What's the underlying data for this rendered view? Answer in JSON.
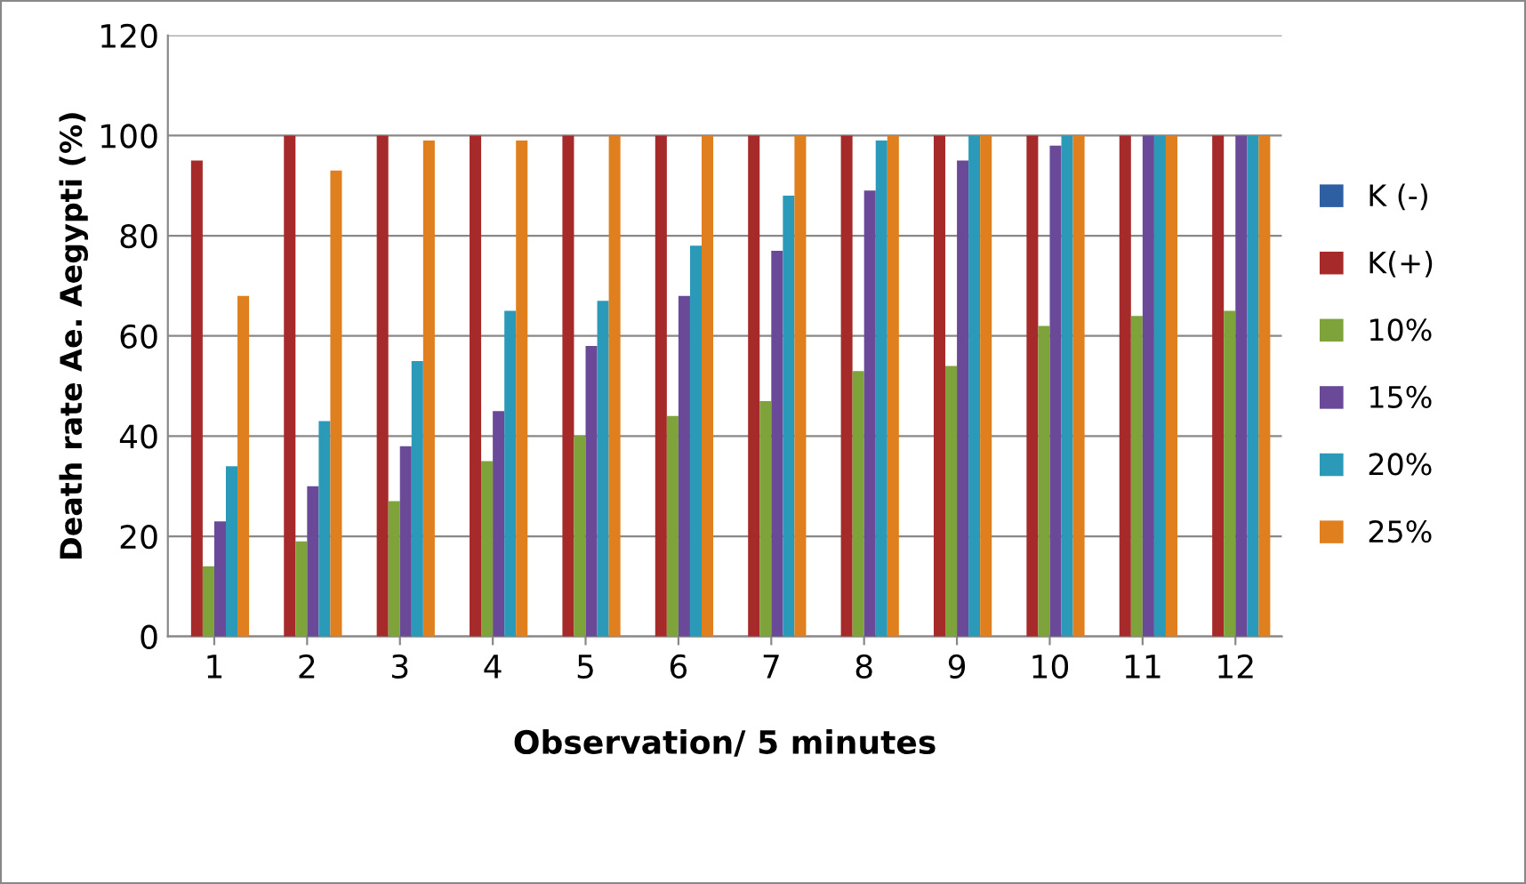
{
  "chart_data": {
    "type": "bar",
    "xlabel": "Observation/ 5 minutes",
    "ylabel": "Death rate Ae. Aegypti (%)",
    "categories": [
      "1",
      "2",
      "3",
      "4",
      "5",
      "6",
      "7",
      "8",
      "9",
      "10",
      "11",
      "12"
    ],
    "series": [
      {
        "name": "K (-)",
        "color": "#2e5fa3",
        "values": [
          0,
          0,
          0,
          0,
          0,
          0,
          0,
          0,
          0,
          0,
          0,
          0
        ]
      },
      {
        "name": "K(+)",
        "color": "#a72a2a",
        "values": [
          95,
          100,
          100,
          100,
          100,
          100,
          100,
          100,
          100,
          100,
          100,
          100
        ]
      },
      {
        "name": "10%",
        "color": "#7ea33a",
        "values": [
          14,
          19,
          27,
          35,
          40,
          44,
          47,
          53,
          54,
          62,
          64,
          65
        ]
      },
      {
        "name": "15%",
        "color": "#6a4a98",
        "values": [
          23,
          30,
          38,
          45,
          58,
          68,
          77,
          89,
          95,
          98,
          100,
          100
        ]
      },
      {
        "name": "20%",
        "color": "#2a9ab8",
        "values": [
          34,
          43,
          55,
          65,
          67,
          78,
          88,
          99,
          100,
          100,
          100,
          100
        ]
      },
      {
        "name": "25%",
        "color": "#e07f1e",
        "values": [
          68,
          93,
          99,
          99,
          100,
          100,
          100,
          100,
          100,
          100,
          100,
          100
        ]
      }
    ],
    "ylim": [
      0,
      120
    ],
    "yticks": [
      0,
      20,
      40,
      60,
      80,
      100,
      120
    ],
    "grid": "y",
    "legend": "right"
  }
}
